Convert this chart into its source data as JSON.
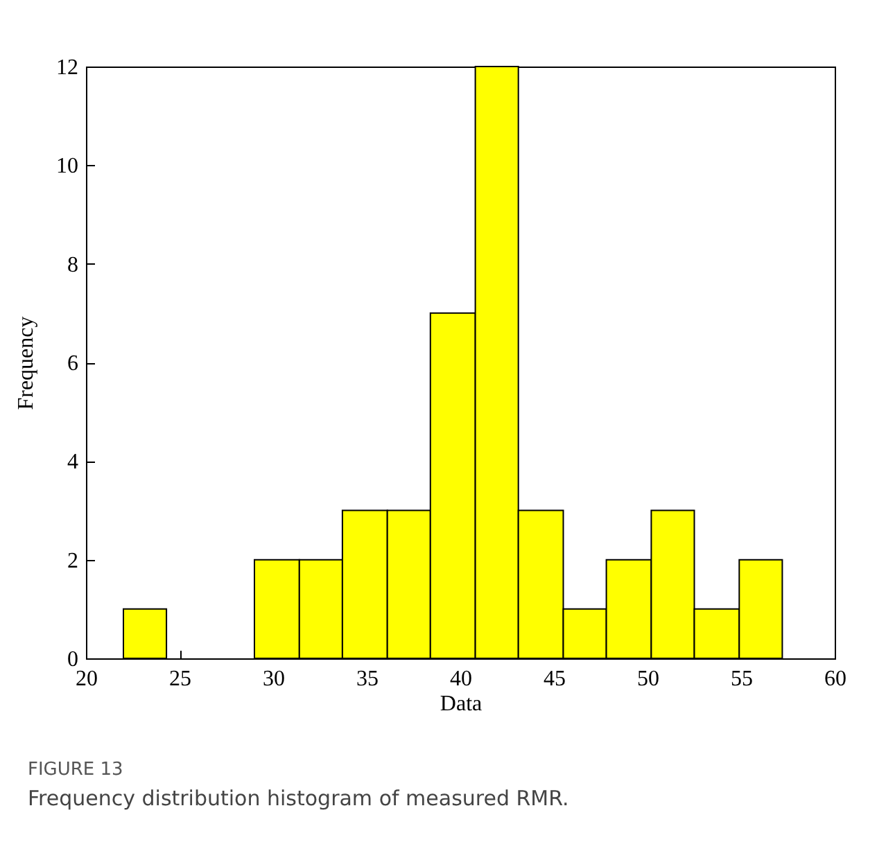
{
  "chart_data": {
    "type": "histogram",
    "xlabel": "Data",
    "ylabel": "Frequency",
    "bins": [
      22,
      24.3,
      29.0,
      31.4,
      33.7,
      36.1,
      38.4,
      40.8,
      43.1,
      45.5,
      47.8,
      50.2,
      52.5,
      54.9,
      57.2
    ],
    "values": [
      1,
      0,
      2,
      2,
      3,
      3,
      7,
      12,
      3,
      1,
      2,
      3,
      1,
      2
    ],
    "color": "#ffff00",
    "xlim": [
      20,
      60
    ],
    "xticks": [
      20,
      25,
      30,
      35,
      40,
      45,
      50,
      55,
      60
    ],
    "ylim": [
      0,
      12
    ],
    "yticks": [
      0,
      2,
      4,
      6,
      8,
      10,
      12
    ],
    "grid": false,
    "annotations": [
      "FIGURE 13",
      "Frequency distribution histogram of measured RMR."
    ]
  }
}
